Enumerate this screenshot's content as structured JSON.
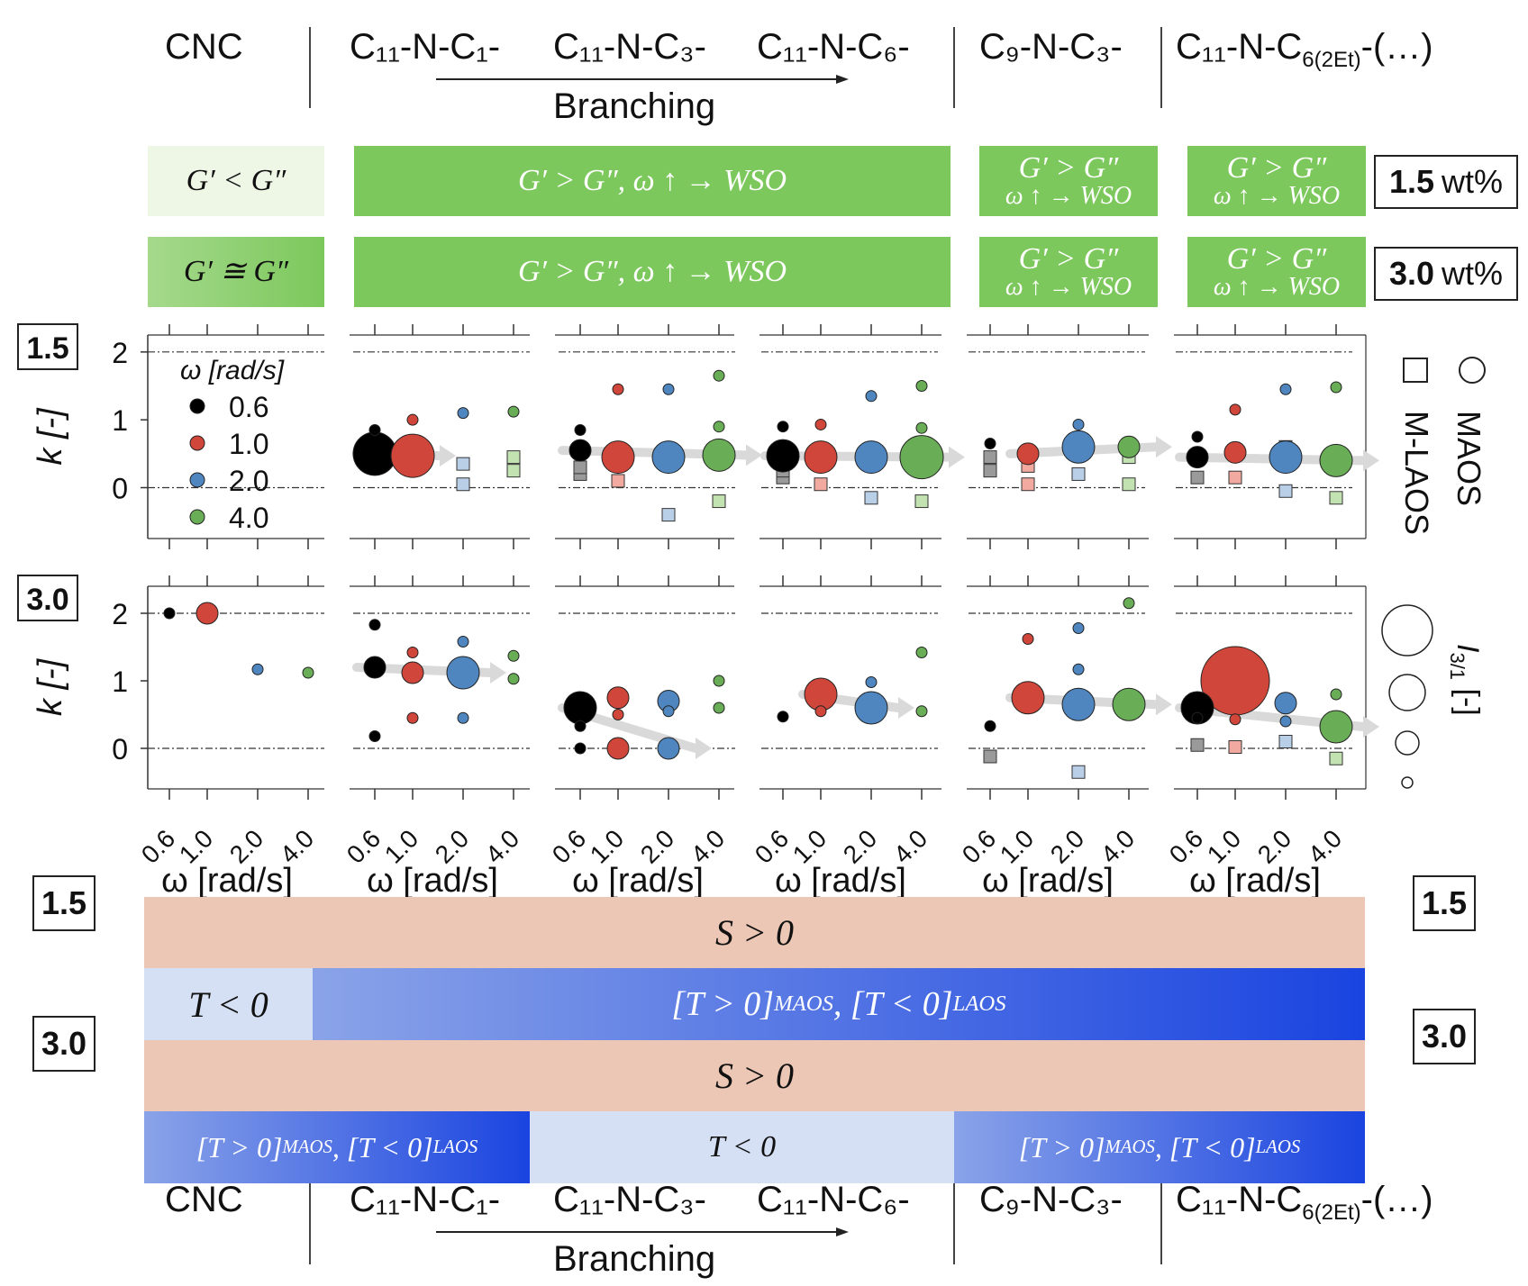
{
  "header": {
    "groups": [
      "CNC",
      "C₁₁-N-C₁-",
      "C₁₁-N-C₃-",
      "C₁₁-N-C₆-",
      "C₉-N-C₃-",
      "C₁₁-N-C"
    ],
    "last_sub": "6(2Et)",
    "last_tail": "-(…)",
    "branching": "Branching"
  },
  "moduli": {
    "wt15": "1.5",
    "wt30": "3.0",
    "wt_unit": "wt%",
    "cnc15": "G′ < G″",
    "cnc30": "G′ ≅ G″",
    "wide": "G′ > G″, ω ↑ → WSO",
    "narrow_top": "G′ > G″",
    "narrow_bot": "ω ↑ → WSO",
    "colors": {
      "green": "#7cc85c",
      "cnc_light": "#eef7e6",
      "cnc_grad_start": "#a5d98c"
    }
  },
  "panel_labels": {
    "top": "1.5",
    "bottom": "3.0"
  },
  "legend": {
    "title": "ω  [rad/s]",
    "items": [
      {
        "label": "0.6",
        "color": "#000000"
      },
      {
        "label": "1.0",
        "color": "#d0463a"
      },
      {
        "label": "2.0",
        "color": "#4f86c0"
      },
      {
        "label": "4.0",
        "color": "#6aad57"
      }
    ],
    "square_label": "M-LAOS",
    "circle_label": "MAOS",
    "size_label": "I",
    "size_sub": "3/1",
    "size_unit": "[-]"
  },
  "chart_data": {
    "type": "scatter",
    "ylabel": "k [-]",
    "xlabel": "ω [rad/s]",
    "x_categories": [
      "0.6",
      "1.0",
      "2.0",
      "4.0"
    ],
    "ylim_top": [
      -0.75,
      2.25
    ],
    "ylim_bottom": [
      -0.6,
      2.4
    ],
    "yticks": [
      0,
      1,
      2
    ],
    "reference_lines": [
      0,
      2
    ],
    "series_colors": [
      "#000000",
      "#d0463a",
      "#4f86c0",
      "#6aad57"
    ],
    "panels": [
      {
        "concentration": "1.5",
        "samples": [
          {
            "group": "CNC",
            "circles": [],
            "squares": []
          },
          {
            "group": "C11-N-C1-",
            "circles": [
              [
                0,
                0.85,
                1
              ],
              [
                0,
                0.5,
                4
              ],
              [
                1,
                1.0,
                1
              ],
              [
                1,
                0.47,
                4
              ],
              [
                2,
                1.1,
                1
              ],
              [
                3,
                1.12,
                1
              ]
            ],
            "squares": [
              [
                2,
                0.35
              ],
              [
                2,
                0.05
              ],
              [
                3,
                0.45
              ],
              [
                3,
                0.25
              ]
            ]
          },
          {
            "group": "C11-N-C3-",
            "circles": [
              [
                0,
                0.85,
                1
              ],
              [
                0,
                0.55,
                2
              ],
              [
                1,
                1.45,
                1
              ],
              [
                1,
                0.45,
                3
              ],
              [
                2,
                1.45,
                1
              ],
              [
                2,
                0.45,
                3
              ],
              [
                3,
                1.65,
                1
              ],
              [
                3,
                0.9,
                1
              ],
              [
                3,
                0.48,
                3
              ]
            ],
            "squares": [
              [
                0,
                0.2
              ],
              [
                0,
                0.3
              ],
              [
                1,
                0.1
              ],
              [
                1,
                0.38
              ],
              [
                2,
                -0.4
              ],
              [
                2,
                0.45
              ],
              [
                3,
                -0.2
              ],
              [
                3,
                0.38
              ]
            ]
          },
          {
            "group": "C11-N-C6-",
            "circles": [
              [
                0,
                0.9,
                1
              ],
              [
                0,
                0.47,
                3
              ],
              [
                1,
                0.93,
                1
              ],
              [
                1,
                0.45,
                3
              ],
              [
                2,
                1.35,
                1
              ],
              [
                2,
                0.45,
                3
              ],
              [
                3,
                1.5,
                1
              ],
              [
                3,
                0.88,
                1
              ],
              [
                3,
                0.45,
                4
              ]
            ],
            "squares": [
              [
                0,
                0.15
              ],
              [
                0,
                0.25
              ],
              [
                1,
                0.05
              ],
              [
                1,
                0.33
              ],
              [
                2,
                -0.15
              ],
              [
                2,
                0.55
              ],
              [
                3,
                -0.2
              ],
              [
                3,
                0.28
              ]
            ]
          },
          {
            "group": "C9-N-C3-",
            "circles": [
              [
                0,
                0.65,
                1
              ],
              [
                1,
                0.5,
                2
              ],
              [
                2,
                0.93,
                1
              ],
              [
                2,
                0.6,
                3
              ],
              [
                3,
                0.6,
                2
              ]
            ],
            "squares": [
              [
                0,
                0.45
              ],
              [
                0,
                0.25
              ],
              [
                1,
                0.05
              ],
              [
                1,
                0.32
              ],
              [
                2,
                0.2
              ],
              [
                3,
                0.45
              ],
              [
                3,
                0.05
              ]
            ]
          },
          {
            "group": "C11-N-C6(2Et)-(...)",
            "circles": [
              [
                0,
                0.75,
                1
              ],
              [
                0,
                0.45,
                2
              ],
              [
                1,
                1.15,
                1
              ],
              [
                1,
                0.52,
                2
              ],
              [
                2,
                1.45,
                1
              ],
              [
                2,
                0.45,
                3
              ],
              [
                3,
                1.48,
                1
              ],
              [
                3,
                0.4,
                3
              ]
            ],
            "squares": [
              [
                0,
                0.15
              ],
              [
                1,
                0.15
              ],
              [
                1,
                0.5
              ],
              [
                2,
                -0.05
              ],
              [
                2,
                0.6
              ],
              [
                3,
                -0.15
              ],
              [
                3,
                0.3
              ]
            ]
          }
        ]
      },
      {
        "concentration": "3.0",
        "samples": [
          {
            "group": "CNC",
            "circles": [
              [
                0,
                2.0,
                1
              ],
              [
                1,
                2.0,
                2
              ],
              [
                2,
                1.17,
                1
              ],
              [
                3,
                1.12,
                1
              ]
            ],
            "squares": []
          },
          {
            "group": "C11-N-C1-",
            "circles": [
              [
                0,
                1.83,
                1
              ],
              [
                0,
                1.2,
                2
              ],
              [
                0,
                0.18,
                1
              ],
              [
                1,
                1.42,
                1
              ],
              [
                1,
                1.12,
                2
              ],
              [
                1,
                0.45,
                1
              ],
              [
                2,
                1.58,
                1
              ],
              [
                2,
                1.12,
                3
              ],
              [
                2,
                0.45,
                1
              ],
              [
                3,
                1.37,
                1
              ],
              [
                3,
                1.03,
                1
              ]
            ],
            "squares": []
          },
          {
            "group": "C11-N-C3-",
            "circles": [
              [
                0,
                0.6,
                3
              ],
              [
                0,
                0.33,
                1
              ],
              [
                0,
                0.0,
                1
              ],
              [
                1,
                0.75,
                2
              ],
              [
                1,
                0.5,
                1
              ],
              [
                1,
                0.0,
                2
              ],
              [
                2,
                0.7,
                2
              ],
              [
                2,
                0.55,
                1
              ],
              [
                2,
                0.0,
                2
              ],
              [
                3,
                1.0,
                1
              ],
              [
                3,
                0.6,
                1
              ]
            ],
            "squares": []
          },
          {
            "group": "C11-N-C6-",
            "circles": [
              [
                0,
                0.47,
                1
              ],
              [
                1,
                0.8,
                3
              ],
              [
                1,
                0.55,
                1
              ],
              [
                2,
                0.98,
                1
              ],
              [
                2,
                0.6,
                3
              ],
              [
                3,
                1.42,
                1
              ],
              [
                3,
                0.55,
                1
              ]
            ],
            "squares": []
          },
          {
            "group": "C9-N-C3-",
            "circles": [
              [
                0,
                0.33,
                1
              ],
              [
                1,
                1.62,
                1
              ],
              [
                1,
                0.75,
                3
              ],
              [
                2,
                1.78,
                1
              ],
              [
                2,
                1.17,
                1
              ],
              [
                2,
                0.65,
                3
              ],
              [
                3,
                2.15,
                1
              ],
              [
                3,
                0.65,
                3
              ]
            ],
            "squares": [
              [
                0,
                -0.12
              ],
              [
                2,
                -0.35
              ]
            ]
          },
          {
            "group": "C11-N-C6(2Et)-(...)",
            "circles": [
              [
                0,
                0.6,
                3
              ],
              [
                0,
                0.45,
                1
              ],
              [
                1,
                1.0,
                5
              ],
              [
                1,
                0.43,
                1
              ],
              [
                2,
                0.67,
                2
              ],
              [
                2,
                0.4,
                1
              ],
              [
                3,
                0.8,
                1
              ],
              [
                3,
                0.32,
                3
              ]
            ],
            "squares": [
              [
                0,
                0.05
              ],
              [
                1,
                0.02
              ],
              [
                2,
                0.1
              ],
              [
                3,
                -0.15
              ]
            ]
          }
        ]
      }
    ]
  },
  "bands": {
    "wt15": "1.5",
    "wt30": "3.0",
    "s_pos": "S > 0",
    "t_neg": "T < 0",
    "mixed_a": "[T > 0]",
    "mixed_a_sub": "MAOS",
    "mixed_b": ", [T < 0]",
    "mixed_b_sub": "LAOS",
    "colors": {
      "salmon": "#ecc7b5",
      "light_blue": "#d6e0f5",
      "blue_start": "#8aa3e8",
      "blue_end": "#1a44e0"
    }
  }
}
